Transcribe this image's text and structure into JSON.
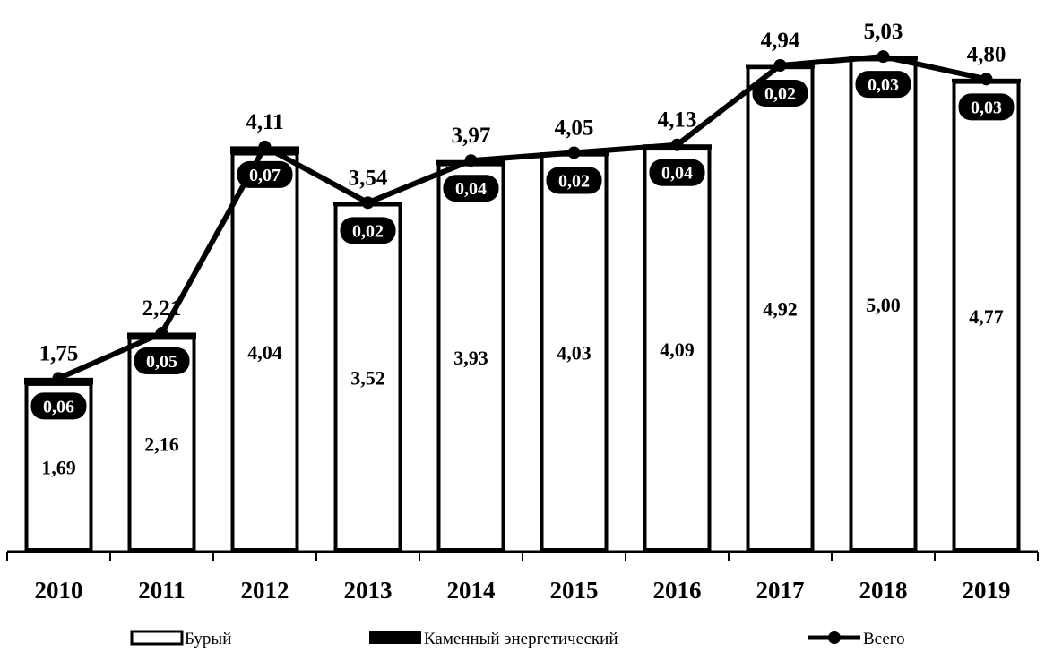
{
  "chart_data": {
    "type": "bar",
    "stacked": true,
    "categories": [
      "2010",
      "2011",
      "2012",
      "2013",
      "2014",
      "2015",
      "2016",
      "2017",
      "2018",
      "2019"
    ],
    "series": [
      {
        "name": "Бурый",
        "kind": "bar",
        "color": "#ffffff",
        "values": [
          1.69,
          2.16,
          4.04,
          3.52,
          3.93,
          4.03,
          4.09,
          4.92,
          5.0,
          4.77
        ],
        "labels": [
          "1,69",
          "2,16",
          "4,04",
          "3,52",
          "3,93",
          "4,03",
          "4,09",
          "4,92",
          "5,00",
          "4,77"
        ]
      },
      {
        "name": "Каменный энергетический",
        "kind": "bar",
        "color": "#000000",
        "values": [
          0.06,
          0.05,
          0.07,
          0.02,
          0.04,
          0.02,
          0.04,
          0.02,
          0.03,
          0.03
        ],
        "labels": [
          "0,06",
          "0,05",
          "0,07",
          "0,02",
          "0,04",
          "0,02",
          "0,04",
          "0,02",
          "0,03",
          "0,03"
        ]
      },
      {
        "name": "Всего",
        "kind": "line",
        "color": "#000000",
        "values": [
          1.75,
          2.21,
          4.11,
          3.54,
          3.97,
          4.05,
          4.13,
          4.94,
          5.03,
          4.8
        ],
        "labels": [
          "1,75",
          "2,21",
          "4,11",
          "3,54",
          "3,97",
          "4,05",
          "4,13",
          "4,94",
          "5,03",
          "4,80"
        ]
      }
    ],
    "ylim": [
      0,
      5.15
    ],
    "y_axis_visible": false,
    "grid": false,
    "legend_position": "bottom"
  }
}
